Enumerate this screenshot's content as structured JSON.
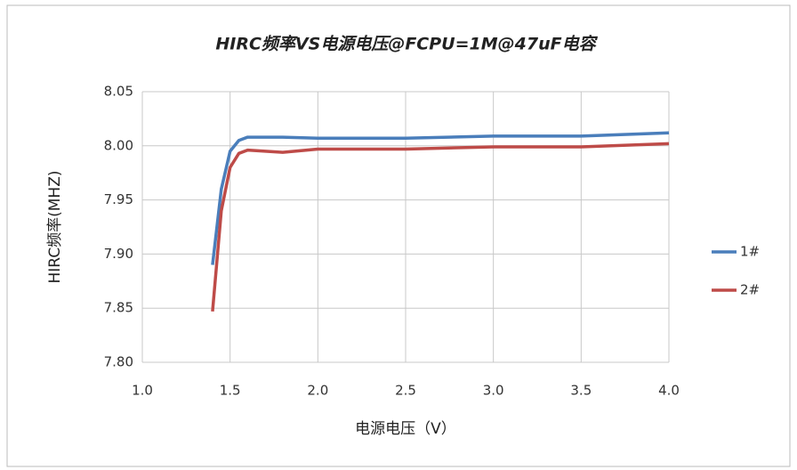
{
  "chart_data": {
    "type": "line",
    "title": "HIRC频率VS电源电压@FCPU=1M@47uF电容",
    "x_label": "电源电压（V）",
    "y_label": "HIRC频率(MHZ)",
    "x": [
      1.4,
      1.45,
      1.5,
      1.55,
      1.6,
      1.7,
      1.8,
      2.0,
      2.5,
      3.0,
      3.5,
      4.0
    ],
    "series": [
      {
        "name": "1#",
        "color": "#4a7ebb",
        "values": [
          7.89,
          7.96,
          7.995,
          8.005,
          8.008,
          8.008,
          8.008,
          8.007,
          8.007,
          8.009,
          8.009,
          8.012
        ]
      },
      {
        "name": "2#",
        "color": "#be4b48",
        "values": [
          7.847,
          7.94,
          7.98,
          7.993,
          7.996,
          7.995,
          7.994,
          7.997,
          7.997,
          7.999,
          7.999,
          8.002
        ]
      }
    ],
    "xlim": [
      1.0,
      4.0
    ],
    "xticks": [
      {
        "value": 1.0,
        "label": "1.0"
      },
      1.5,
      {
        "value": 2.0,
        "label": "2.0"
      },
      2.5,
      {
        "value": 3.0,
        "label": "3.0"
      },
      3.5,
      {
        "value": 4.0,
        "label": "4.0"
      }
    ],
    "ylim": [
      7.8,
      8.05
    ],
    "yticks": [
      {
        "value": 7.8,
        "label": "7.80"
      },
      7.85,
      {
        "value": 7.9,
        "label": "7.90"
      },
      7.95,
      {
        "value": 8.0,
        "label": "8.00"
      },
      8.05
    ],
    "grid": true,
    "legend": "right"
  }
}
